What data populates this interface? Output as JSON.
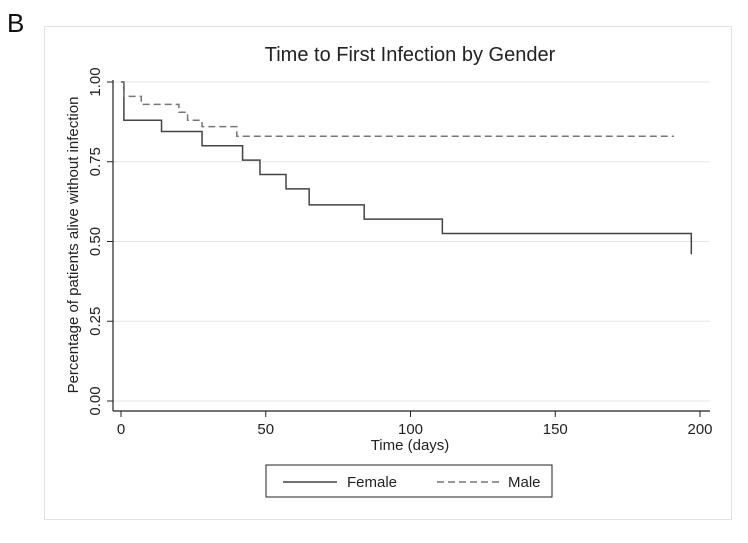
{
  "panel_label": "B",
  "chart_data": {
    "type": "line",
    "title": "Time to First Infection by Gender",
    "xlabel": "Time (days)",
    "ylabel": "Percentage of patients alive without infection",
    "xlim": [
      0,
      205
    ],
    "ylim": [
      0,
      1.0
    ],
    "x_ticks": [
      0,
      50,
      100,
      150,
      200
    ],
    "x_tick_labels": [
      "0",
      "50",
      "100",
      "150",
      "200"
    ],
    "y_ticks": [
      0,
      0.25,
      0.5,
      0.75,
      1.0
    ],
    "y_tick_labels": [
      "0.00",
      "0.25",
      "0.50",
      "0.75",
      "1.00"
    ],
    "grid": true,
    "legend_position": "bottom",
    "series": [
      {
        "name": "Female",
        "style": "solid",
        "color": "#444444",
        "step": true,
        "x": [
          0,
          1,
          14,
          28,
          42,
          48,
          57,
          65,
          84,
          111,
          197
        ],
        "y": [
          1.0,
          0.88,
          0.845,
          0.8,
          0.755,
          0.71,
          0.665,
          0.615,
          0.57,
          0.525,
          0.46
        ]
      },
      {
        "name": "Male",
        "style": "dashed",
        "color": "#777777",
        "step": true,
        "x": [
          0,
          1,
          7,
          20,
          23,
          28,
          40,
          191
        ],
        "y": [
          1.0,
          0.955,
          0.93,
          0.905,
          0.88,
          0.86,
          0.83,
          0.83
        ]
      }
    ]
  }
}
